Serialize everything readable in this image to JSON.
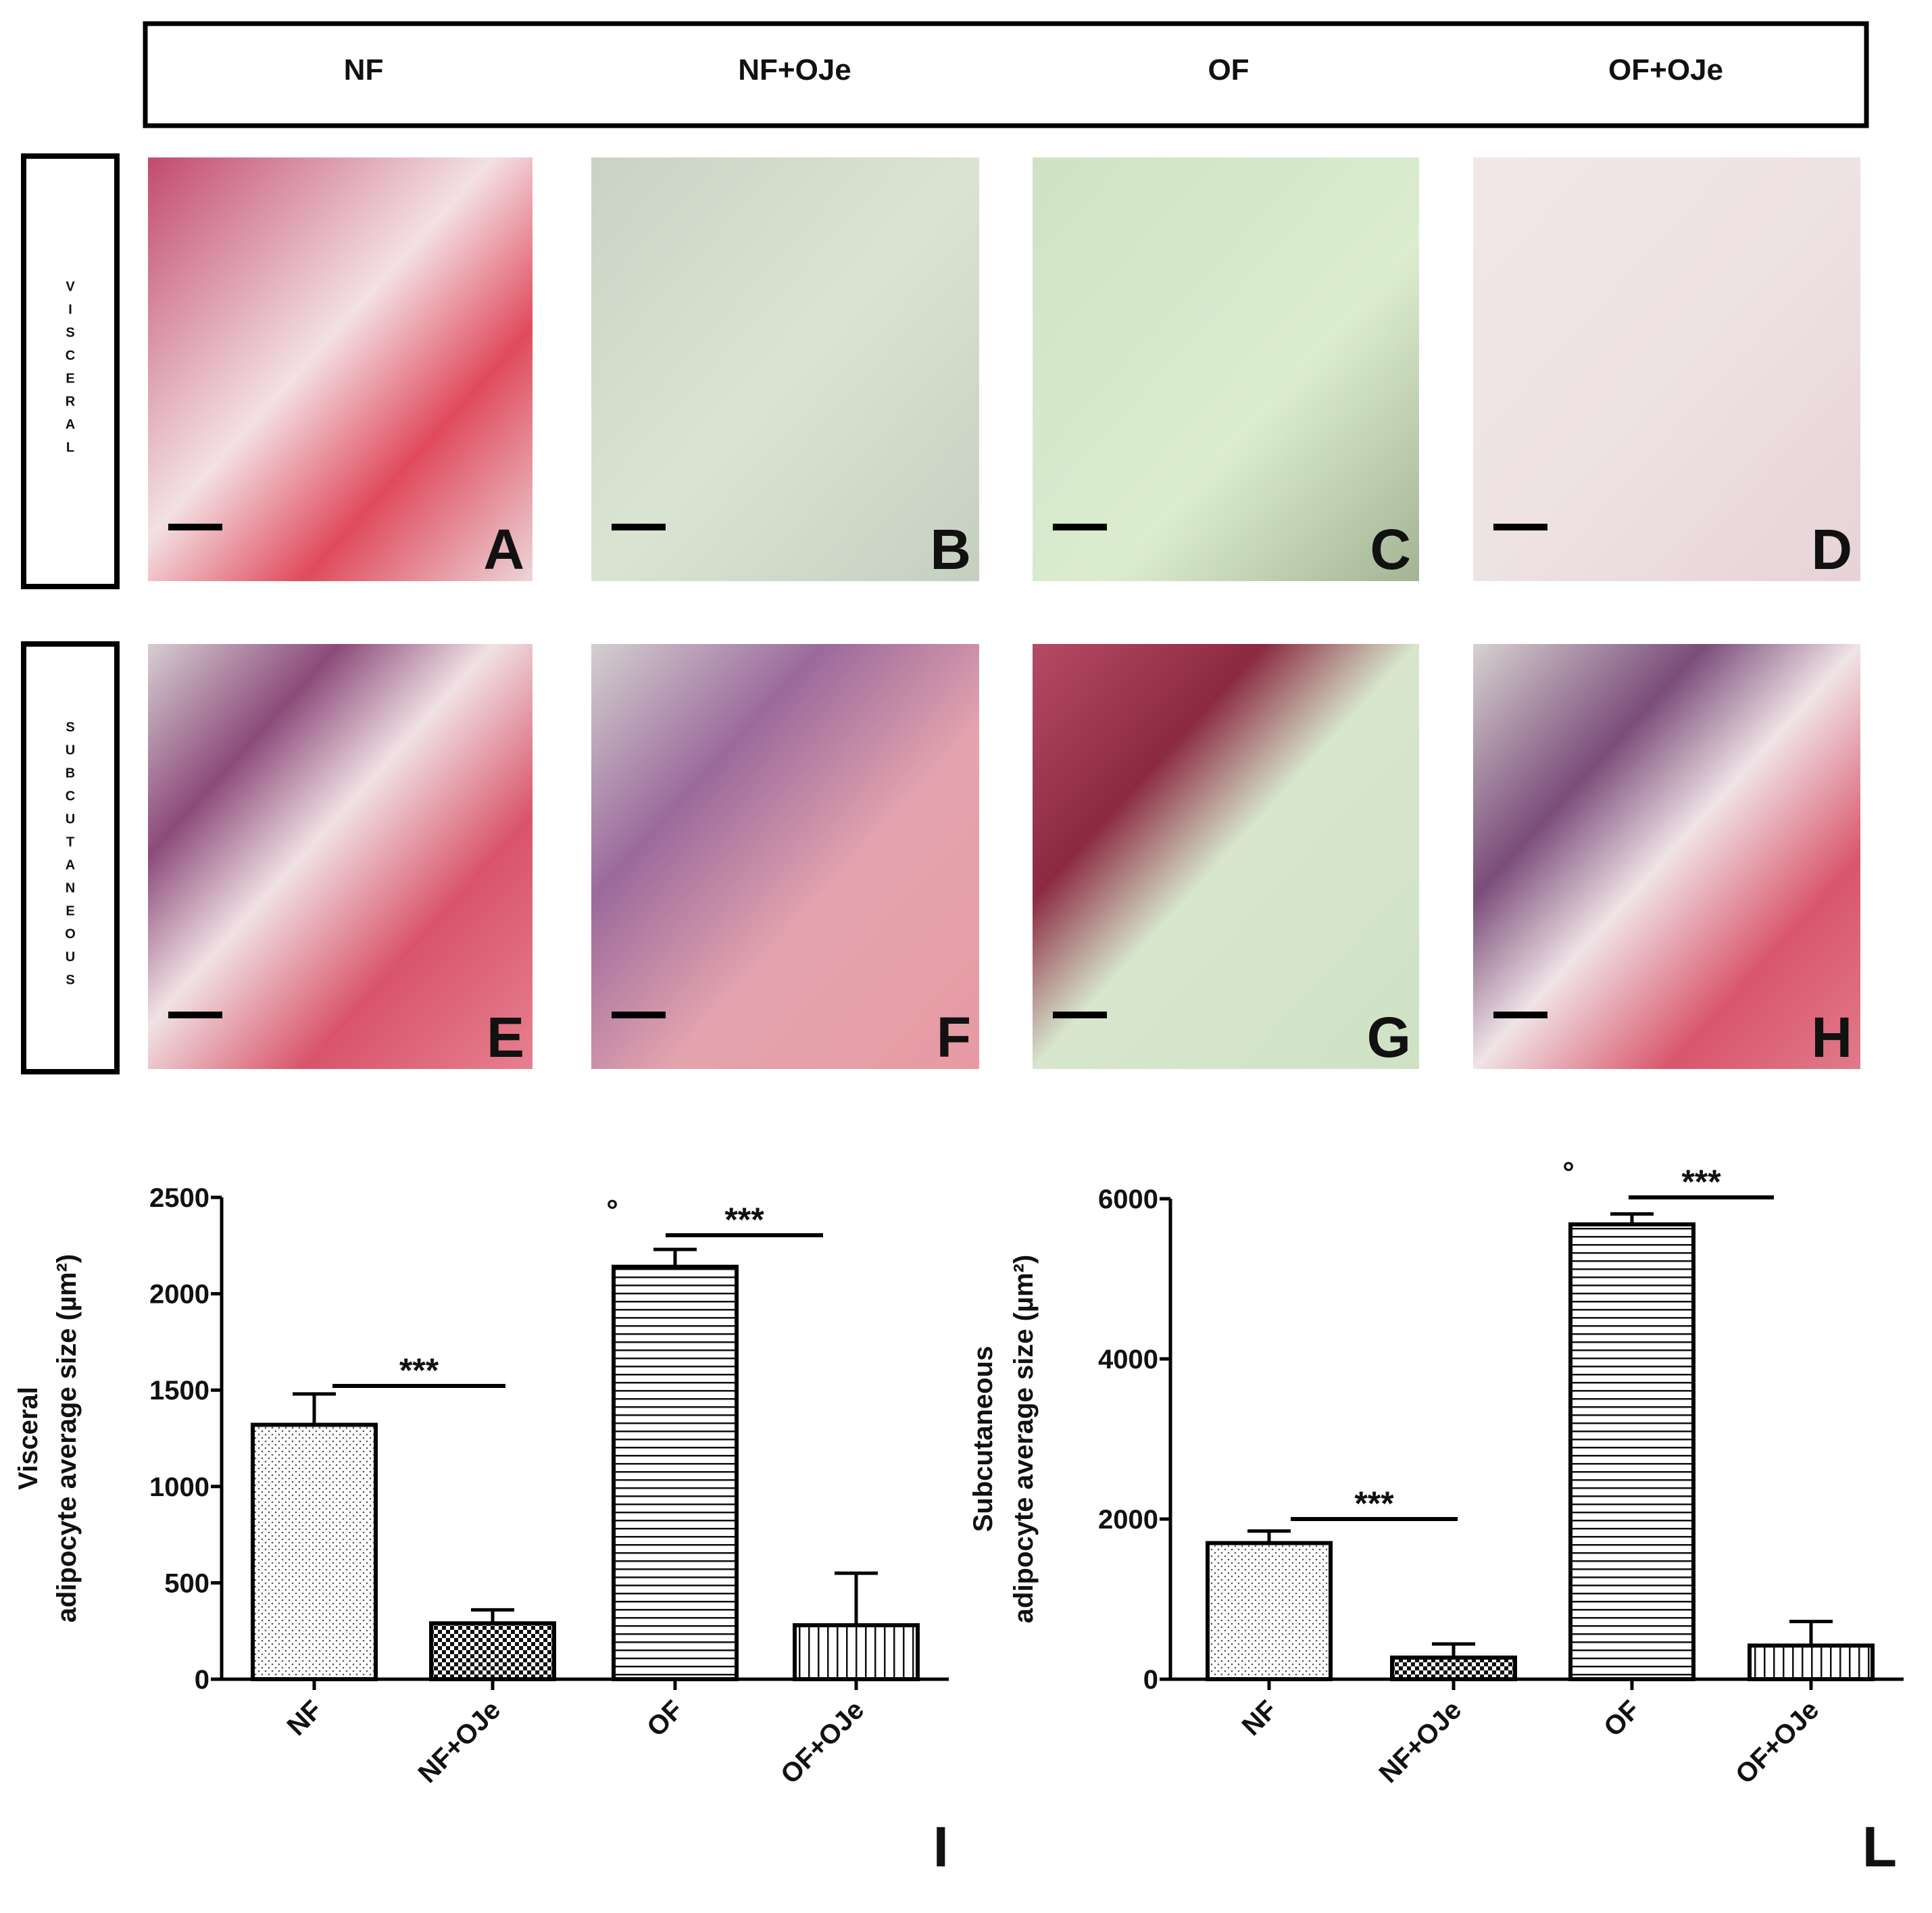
{
  "columns": [
    "NF",
    "NF+OJe",
    "OF",
    "OF+OJe"
  ],
  "rows": [
    {
      "label": "VISCERAL",
      "panels": [
        "A",
        "B",
        "C",
        "D"
      ]
    },
    {
      "label": "SUBCUTANEOUS",
      "panels": [
        "E",
        "F",
        "G",
        "H"
      ]
    }
  ],
  "chart_data": [
    {
      "type": "bar",
      "panel": "I",
      "y_label": [
        "Visceral",
        "adipocyte average size (µm²)"
      ],
      "categories": [
        "NF",
        "NF+OJe",
        "OF",
        "OF+OJe"
      ],
      "values": [
        1320,
        290,
        2140,
        280
      ],
      "errors": [
        160,
        70,
        90,
        270
      ],
      "patterns": [
        "dots",
        "checker",
        "hlines",
        "vlines"
      ],
      "annotations": [
        "***",
        "***",
        "°"
      ],
      "ylim": [
        0,
        2500
      ],
      "yticks": [
        0,
        500,
        1000,
        1500,
        2000,
        2500
      ]
    },
    {
      "type": "bar",
      "panel": "L",
      "y_label": [
        "Subcutaneous",
        "adipocyte average size (µm²)"
      ],
      "categories": [
        "NF",
        "NF+OJe",
        "OF",
        "OF+OJe"
      ],
      "values": [
        1700,
        270,
        5680,
        420
      ],
      "errors": [
        150,
        170,
        130,
        300
      ],
      "patterns": [
        "dots",
        "checker",
        "hlines",
        "vlines"
      ],
      "annotations": [
        "***",
        "***",
        "°"
      ],
      "ylim": [
        0,
        6000
      ],
      "yticks": [
        0,
        2000,
        4000,
        6000
      ]
    }
  ]
}
